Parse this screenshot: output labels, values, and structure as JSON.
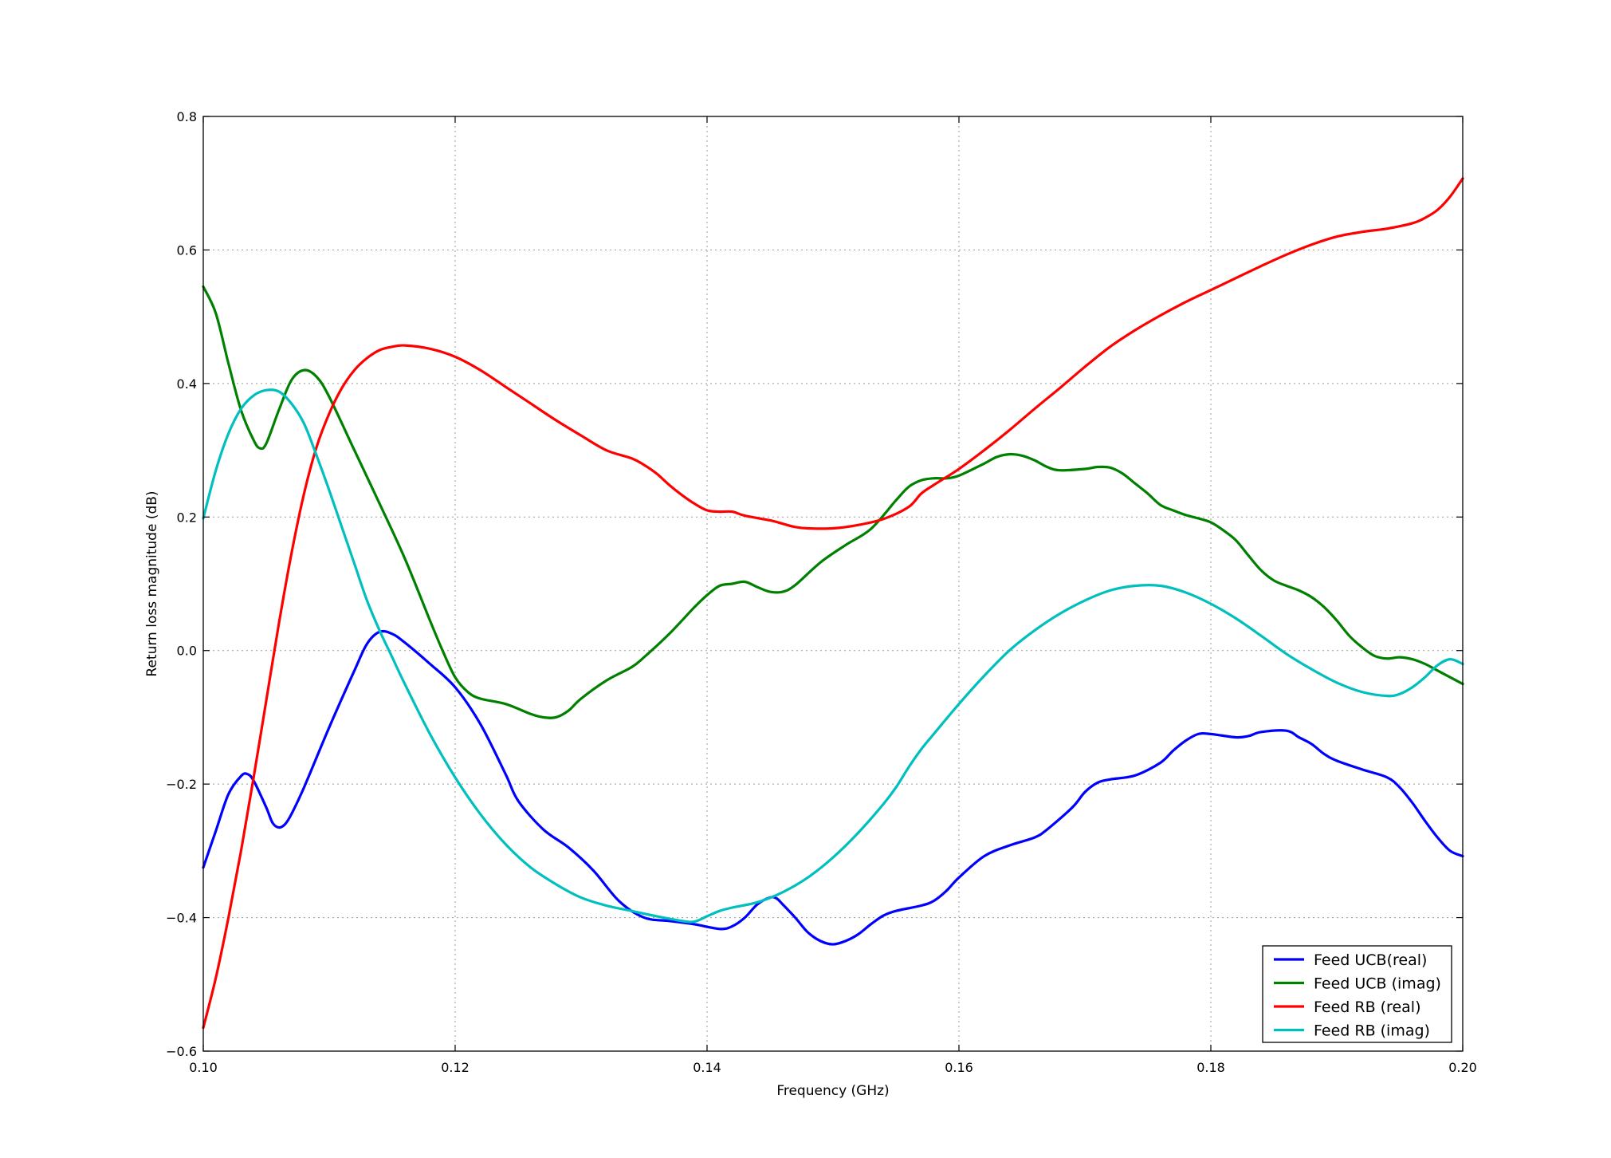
{
  "chart_data": {
    "type": "line",
    "title": "",
    "xlabel": "Frequency (GHz)",
    "ylabel": "Return loss magnitude (dB)",
    "xlim": [
      0.1,
      0.2
    ],
    "ylim": [
      -0.6,
      0.8
    ],
    "xticks": [
      0.1,
      0.12,
      0.14,
      0.16,
      0.18,
      0.2
    ],
    "xtick_labels": [
      "0.10",
      "0.12",
      "0.14",
      "0.16",
      "0.18",
      "0.20"
    ],
    "yticks": [
      -0.6,
      -0.4,
      -0.2,
      0.0,
      0.2,
      0.4,
      0.6,
      0.8
    ],
    "ytick_labels": [
      "−0.6",
      "−0.4",
      "−0.2",
      "0.0",
      "0.2",
      "0.4",
      "0.6",
      "0.8"
    ],
    "grid": true,
    "legend_position": "bottom-right",
    "series": [
      {
        "name": "Feed UCB(real)",
        "color": "#0000ff",
        "points": [
          [
            0.1,
            -0.325
          ],
          [
            0.101,
            -0.27
          ],
          [
            0.102,
            -0.215
          ],
          [
            0.103,
            -0.188
          ],
          [
            0.1035,
            -0.185
          ],
          [
            0.104,
            -0.195
          ],
          [
            0.105,
            -0.235
          ],
          [
            0.1055,
            -0.258
          ],
          [
            0.106,
            -0.265
          ],
          [
            0.1065,
            -0.26
          ],
          [
            0.107,
            -0.245
          ],
          [
            0.108,
            -0.205
          ],
          [
            0.11,
            -0.115
          ],
          [
            0.112,
            -0.03
          ],
          [
            0.113,
            0.01
          ],
          [
            0.114,
            0.028
          ],
          [
            0.115,
            0.025
          ],
          [
            0.116,
            0.012
          ],
          [
            0.118,
            -0.02
          ],
          [
            0.12,
            -0.055
          ],
          [
            0.122,
            -0.11
          ],
          [
            0.124,
            -0.185
          ],
          [
            0.125,
            -0.225
          ],
          [
            0.127,
            -0.268
          ],
          [
            0.129,
            -0.295
          ],
          [
            0.131,
            -0.33
          ],
          [
            0.133,
            -0.375
          ],
          [
            0.135,
            -0.4
          ],
          [
            0.137,
            -0.405
          ],
          [
            0.139,
            -0.41
          ],
          [
            0.141,
            -0.417
          ],
          [
            0.142,
            -0.413
          ],
          [
            0.143,
            -0.4
          ],
          [
            0.144,
            -0.38
          ],
          [
            0.145,
            -0.37
          ],
          [
            0.1455,
            -0.371
          ],
          [
            0.146,
            -0.38
          ],
          [
            0.147,
            -0.4
          ],
          [
            0.148,
            -0.422
          ],
          [
            0.149,
            -0.435
          ],
          [
            0.15,
            -0.44
          ],
          [
            0.151,
            -0.435
          ],
          [
            0.152,
            -0.425
          ],
          [
            0.153,
            -0.41
          ],
          [
            0.154,
            -0.397
          ],
          [
            0.155,
            -0.39
          ],
          [
            0.157,
            -0.382
          ],
          [
            0.158,
            -0.375
          ],
          [
            0.159,
            -0.36
          ],
          [
            0.16,
            -0.34
          ],
          [
            0.162,
            -0.308
          ],
          [
            0.164,
            -0.292
          ],
          [
            0.166,
            -0.28
          ],
          [
            0.167,
            -0.268
          ],
          [
            0.169,
            -0.235
          ],
          [
            0.17,
            -0.212
          ],
          [
            0.171,
            -0.198
          ],
          [
            0.172,
            -0.193
          ],
          [
            0.174,
            -0.187
          ],
          [
            0.176,
            -0.168
          ],
          [
            0.177,
            -0.15
          ],
          [
            0.178,
            -0.135
          ],
          [
            0.179,
            -0.125
          ],
          [
            0.18,
            -0.125
          ],
          [
            0.182,
            -0.13
          ],
          [
            0.183,
            -0.128
          ],
          [
            0.184,
            -0.122
          ],
          [
            0.186,
            -0.12
          ],
          [
            0.187,
            -0.13
          ],
          [
            0.188,
            -0.14
          ],
          [
            0.189,
            -0.155
          ],
          [
            0.19,
            -0.165
          ],
          [
            0.192,
            -0.178
          ],
          [
            0.194,
            -0.19
          ],
          [
            0.195,
            -0.205
          ],
          [
            0.196,
            -0.228
          ],
          [
            0.197,
            -0.255
          ],
          [
            0.198,
            -0.28
          ],
          [
            0.199,
            -0.3
          ],
          [
            0.2,
            -0.308
          ]
        ]
      },
      {
        "name": "Feed UCB (imag)",
        "color": "#008000",
        "points": [
          [
            0.1,
            0.545
          ],
          [
            0.101,
            0.505
          ],
          [
            0.102,
            0.43
          ],
          [
            0.103,
            0.36
          ],
          [
            0.104,
            0.315
          ],
          [
            0.1045,
            0.303
          ],
          [
            0.105,
            0.31
          ],
          [
            0.106,
            0.36
          ],
          [
            0.107,
            0.405
          ],
          [
            0.108,
            0.42
          ],
          [
            0.109,
            0.41
          ],
          [
            0.11,
            0.38
          ],
          [
            0.112,
            0.3
          ],
          [
            0.114,
            0.22
          ],
          [
            0.116,
            0.138
          ],
          [
            0.118,
            0.045
          ],
          [
            0.119,
            0.0
          ],
          [
            0.12,
            -0.04
          ],
          [
            0.121,
            -0.062
          ],
          [
            0.122,
            -0.072
          ],
          [
            0.124,
            -0.08
          ],
          [
            0.126,
            -0.095
          ],
          [
            0.127,
            -0.1
          ],
          [
            0.128,
            -0.1
          ],
          [
            0.129,
            -0.09
          ],
          [
            0.13,
            -0.072
          ],
          [
            0.132,
            -0.045
          ],
          [
            0.134,
            -0.025
          ],
          [
            0.135,
            -0.01
          ],
          [
            0.137,
            0.025
          ],
          [
            0.139,
            0.065
          ],
          [
            0.14,
            0.083
          ],
          [
            0.141,
            0.097
          ],
          [
            0.142,
            0.1
          ],
          [
            0.143,
            0.103
          ],
          [
            0.144,
            0.095
          ],
          [
            0.145,
            0.088
          ],
          [
            0.146,
            0.088
          ],
          [
            0.147,
            0.098
          ],
          [
            0.149,
            0.132
          ],
          [
            0.151,
            0.158
          ],
          [
            0.153,
            0.182
          ],
          [
            0.155,
            0.225
          ],
          [
            0.156,
            0.245
          ],
          [
            0.157,
            0.255
          ],
          [
            0.158,
            0.258
          ],
          [
            0.159,
            0.258
          ],
          [
            0.16,
            0.262
          ],
          [
            0.162,
            0.28
          ],
          [
            0.163,
            0.29
          ],
          [
            0.164,
            0.294
          ],
          [
            0.165,
            0.292
          ],
          [
            0.166,
            0.285
          ],
          [
            0.167,
            0.275
          ],
          [
            0.168,
            0.27
          ],
          [
            0.17,
            0.272
          ],
          [
            0.171,
            0.275
          ],
          [
            0.172,
            0.274
          ],
          [
            0.173,
            0.265
          ],
          [
            0.174,
            0.25
          ],
          [
            0.175,
            0.235
          ],
          [
            0.176,
            0.218
          ],
          [
            0.177,
            0.21
          ],
          [
            0.178,
            0.203
          ],
          [
            0.179,
            0.198
          ],
          [
            0.18,
            0.192
          ],
          [
            0.181,
            0.18
          ],
          [
            0.182,
            0.165
          ],
          [
            0.183,
            0.142
          ],
          [
            0.184,
            0.12
          ],
          [
            0.185,
            0.105
          ],
          [
            0.186,
            0.097
          ],
          [
            0.187,
            0.09
          ],
          [
            0.188,
            0.08
          ],
          [
            0.189,
            0.065
          ],
          [
            0.19,
            0.045
          ],
          [
            0.191,
            0.022
          ],
          [
            0.192,
            0.005
          ],
          [
            0.193,
            -0.008
          ],
          [
            0.194,
            -0.012
          ],
          [
            0.195,
            -0.01
          ],
          [
            0.196,
            -0.013
          ],
          [
            0.197,
            -0.02
          ],
          [
            0.198,
            -0.03
          ],
          [
            0.199,
            -0.04
          ],
          [
            0.2,
            -0.05
          ]
        ]
      },
      {
        "name": "Feed RB (real)",
        "color": "#ff0000",
        "points": [
          [
            0.1,
            -0.565
          ],
          [
            0.101,
            -0.49
          ],
          [
            0.102,
            -0.4
          ],
          [
            0.103,
            -0.3
          ],
          [
            0.104,
            -0.19
          ],
          [
            0.105,
            -0.075
          ],
          [
            0.106,
            0.04
          ],
          [
            0.107,
            0.145
          ],
          [
            0.108,
            0.235
          ],
          [
            0.109,
            0.305
          ],
          [
            0.11,
            0.355
          ],
          [
            0.111,
            0.393
          ],
          [
            0.112,
            0.42
          ],
          [
            0.113,
            0.438
          ],
          [
            0.114,
            0.45
          ],
          [
            0.115,
            0.455
          ],
          [
            0.116,
            0.457
          ],
          [
            0.118,
            0.452
          ],
          [
            0.12,
            0.44
          ],
          [
            0.122,
            0.42
          ],
          [
            0.124,
            0.395
          ],
          [
            0.126,
            0.37
          ],
          [
            0.128,
            0.345
          ],
          [
            0.13,
            0.322
          ],
          [
            0.132,
            0.3
          ],
          [
            0.134,
            0.288
          ],
          [
            0.135,
            0.278
          ],
          [
            0.136,
            0.265
          ],
          [
            0.137,
            0.248
          ],
          [
            0.138,
            0.233
          ],
          [
            0.139,
            0.22
          ],
          [
            0.14,
            0.21
          ],
          [
            0.141,
            0.208
          ],
          [
            0.142,
            0.208
          ],
          [
            0.143,
            0.202
          ],
          [
            0.145,
            0.195
          ],
          [
            0.146,
            0.19
          ],
          [
            0.147,
            0.185
          ],
          [
            0.148,
            0.183
          ],
          [
            0.15,
            0.183
          ],
          [
            0.152,
            0.188
          ],
          [
            0.154,
            0.197
          ],
          [
            0.156,
            0.215
          ],
          [
            0.157,
            0.235
          ],
          [
            0.158,
            0.248
          ],
          [
            0.16,
            0.272
          ],
          [
            0.162,
            0.3
          ],
          [
            0.164,
            0.33
          ],
          [
            0.166,
            0.362
          ],
          [
            0.168,
            0.393
          ],
          [
            0.17,
            0.425
          ],
          [
            0.172,
            0.455
          ],
          [
            0.174,
            0.48
          ],
          [
            0.176,
            0.502
          ],
          [
            0.178,
            0.522
          ],
          [
            0.18,
            0.54
          ],
          [
            0.182,
            0.558
          ],
          [
            0.184,
            0.576
          ],
          [
            0.186,
            0.593
          ],
          [
            0.188,
            0.608
          ],
          [
            0.19,
            0.62
          ],
          [
            0.192,
            0.627
          ],
          [
            0.194,
            0.632
          ],
          [
            0.196,
            0.64
          ],
          [
            0.197,
            0.648
          ],
          [
            0.198,
            0.66
          ],
          [
            0.199,
            0.68
          ],
          [
            0.2,
            0.707
          ]
        ]
      },
      {
        "name": "Feed RB (imag)",
        "color": "#00bfbf",
        "points": [
          [
            0.1,
            0.198
          ],
          [
            0.101,
            0.27
          ],
          [
            0.102,
            0.325
          ],
          [
            0.103,
            0.362
          ],
          [
            0.104,
            0.382
          ],
          [
            0.105,
            0.39
          ],
          [
            0.106,
            0.388
          ],
          [
            0.107,
            0.37
          ],
          [
            0.108,
            0.34
          ],
          [
            0.109,
            0.292
          ],
          [
            0.11,
            0.24
          ],
          [
            0.111,
            0.185
          ],
          [
            0.112,
            0.13
          ],
          [
            0.113,
            0.075
          ],
          [
            0.114,
            0.03
          ],
          [
            0.115,
            -0.01
          ],
          [
            0.116,
            -0.05
          ],
          [
            0.118,
            -0.125
          ],
          [
            0.12,
            -0.19
          ],
          [
            0.122,
            -0.245
          ],
          [
            0.124,
            -0.29
          ],
          [
            0.126,
            -0.325
          ],
          [
            0.128,
            -0.35
          ],
          [
            0.13,
            -0.37
          ],
          [
            0.132,
            -0.382
          ],
          [
            0.134,
            -0.39
          ],
          [
            0.136,
            -0.398
          ],
          [
            0.138,
            -0.405
          ],
          [
            0.139,
            -0.406
          ],
          [
            0.14,
            -0.398
          ],
          [
            0.141,
            -0.39
          ],
          [
            0.142,
            -0.385
          ],
          [
            0.144,
            -0.377
          ],
          [
            0.146,
            -0.362
          ],
          [
            0.148,
            -0.34
          ],
          [
            0.15,
            -0.31
          ],
          [
            0.152,
            -0.273
          ],
          [
            0.154,
            -0.23
          ],
          [
            0.155,
            -0.205
          ],
          [
            0.156,
            -0.175
          ],
          [
            0.157,
            -0.148
          ],
          [
            0.158,
            -0.125
          ],
          [
            0.16,
            -0.08
          ],
          [
            0.162,
            -0.038
          ],
          [
            0.164,
            0.0
          ],
          [
            0.166,
            0.03
          ],
          [
            0.168,
            0.055
          ],
          [
            0.17,
            0.075
          ],
          [
            0.172,
            0.09
          ],
          [
            0.174,
            0.097
          ],
          [
            0.176,
            0.097
          ],
          [
            0.178,
            0.087
          ],
          [
            0.18,
            0.07
          ],
          [
            0.182,
            0.048
          ],
          [
            0.184,
            0.022
          ],
          [
            0.186,
            -0.005
          ],
          [
            0.188,
            -0.028
          ],
          [
            0.19,
            -0.048
          ],
          [
            0.192,
            -0.062
          ],
          [
            0.194,
            -0.068
          ],
          [
            0.195,
            -0.065
          ],
          [
            0.196,
            -0.055
          ],
          [
            0.197,
            -0.04
          ],
          [
            0.198,
            -0.022
          ],
          [
            0.199,
            -0.013
          ],
          [
            0.2,
            -0.02
          ]
        ]
      }
    ]
  }
}
